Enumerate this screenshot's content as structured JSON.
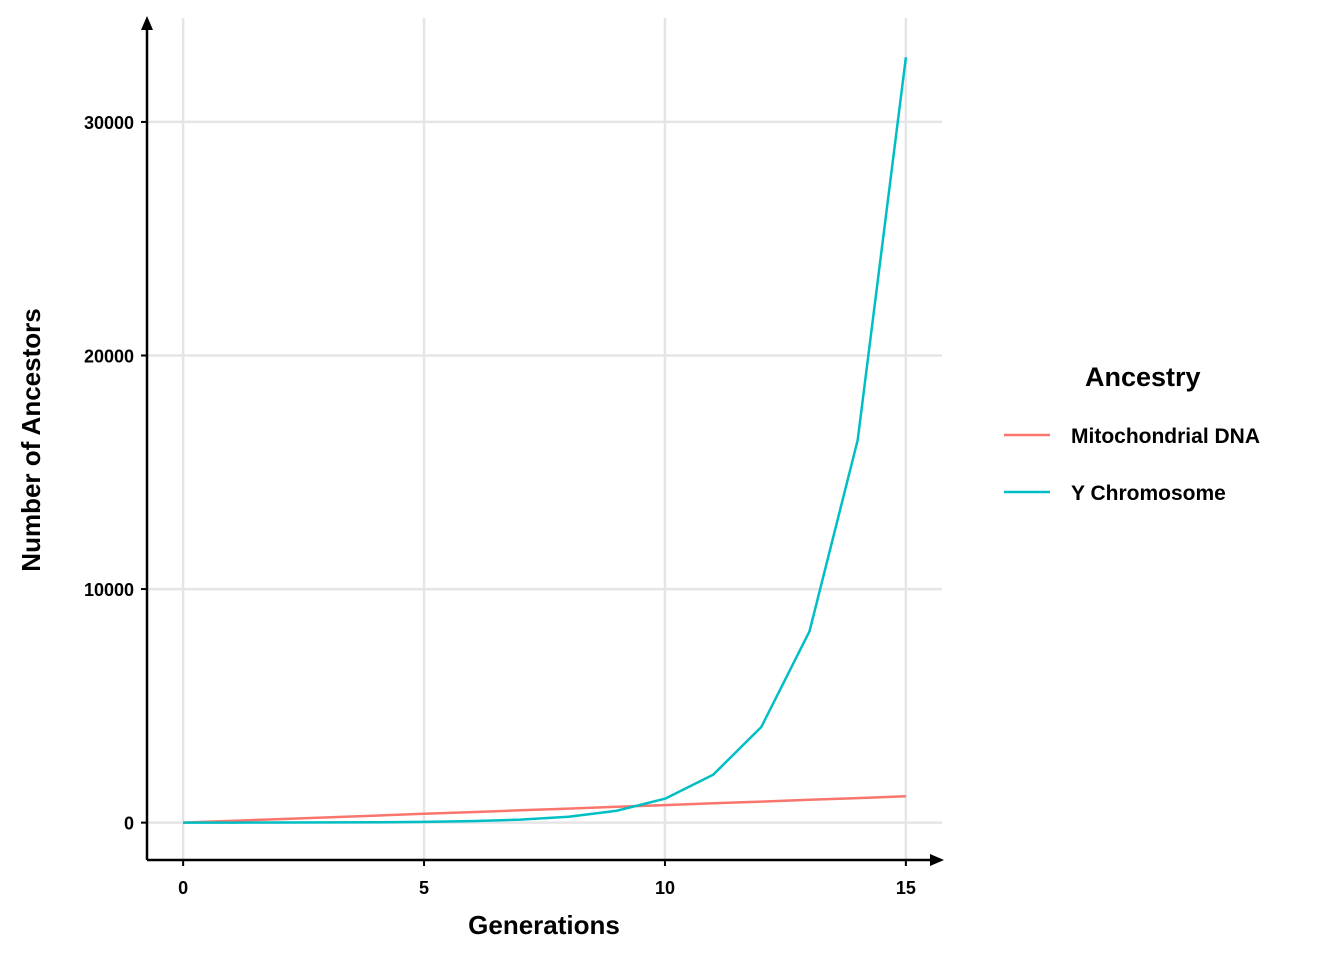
{
  "chart_data": {
    "type": "line",
    "title": "",
    "xlabel": "Generations",
    "ylabel": "Number of Ancestors",
    "xlim": [
      -0.75,
      15.75
    ],
    "ylim": [
      -1600,
      34450
    ],
    "xticks": [
      0,
      5,
      10,
      15
    ],
    "xtick_labels": [
      "0",
      "5",
      "10",
      "15"
    ],
    "yticks": [
      0,
      10000,
      20000,
      30000
    ],
    "ytick_labels": [
      "0",
      "10000",
      "20000",
      "30000"
    ],
    "grid": true,
    "legend": {
      "title": "Ancestry",
      "placement": "right"
    },
    "x": [
      0,
      1,
      2,
      3,
      4,
      5,
      6,
      7,
      8,
      9,
      10,
      11,
      12,
      13,
      14,
      15
    ],
    "series": [
      {
        "name": "Mitochondrial DNA",
        "color": "#F8766D",
        "values": [
          1,
          76,
          151,
          226,
          301,
          376,
          451,
          526,
          601,
          676,
          751,
          826,
          901,
          976,
          1051,
          1126
        ]
      },
      {
        "name": "Y Chromosome",
        "color": "#00BFC4",
        "values": [
          1,
          2,
          4,
          8,
          16,
          32,
          64,
          128,
          256,
          512,
          1024,
          2048,
          4096,
          8192,
          16384,
          32768
        ]
      }
    ]
  }
}
